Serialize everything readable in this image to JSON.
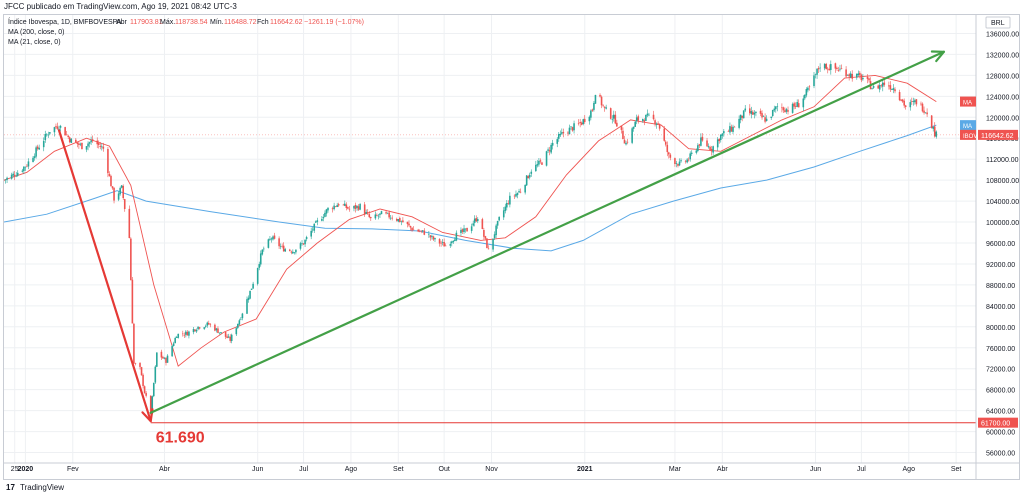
{
  "header": {
    "published_line": "JFCC publicado em TradingView.com, Ago 19, 2021 08:42 UTC-3"
  },
  "legend": {
    "symbol": "Índice Ibovespa, 1D, BMFBOVESPA",
    "open_label": "Abr",
    "open_value": "117903.81",
    "high_label": "Máx.",
    "high_value": "118738.54",
    "low_label": "Mín.",
    "low_value": "116488.72",
    "close_label": "Fch",
    "close_value": "116642.62",
    "change": "−1261.19 (−1.07%)",
    "ma200": "MA (200, close, 0)",
    "ma21": "MA (21, close, 0)"
  },
  "footer": {
    "brand": "TradingView"
  },
  "colors": {
    "up": "#26a69a",
    "down": "#ef5350",
    "ma200": "#5aa9e6",
    "ma21": "#ef5350",
    "trend_down": "#e53935",
    "trend_up": "#43a047"
  },
  "chart_data": {
    "type": "candlestick",
    "currency_label": "BRL",
    "y_ticks": [
      56000,
      60000,
      64000,
      68000,
      72000,
      76000,
      80000,
      84000,
      88000,
      92000,
      96000,
      100000,
      104000,
      108000,
      112000,
      116000,
      120000,
      124000,
      128000,
      132000,
      136000
    ],
    "y_tick_labels": [
      "56000.00",
      "60000.00",
      "64000.00",
      "68000.00",
      "72000.00",
      "76000.00",
      "80000.00",
      "84000.00",
      "88000.00",
      "92000.00",
      "96000.00",
      "100000.00",
      "104000.00",
      "108000.00",
      "112000.00",
      "116000.00",
      "120000.00",
      "124000.00",
      "128000.00",
      "132000.00",
      "136000.00"
    ],
    "ylim": [
      54000,
      138000
    ],
    "x_labels": [
      {
        "label": "25",
        "date": "2019-12-25"
      },
      {
        "label": "2020",
        "date": "2020-01-01"
      },
      {
        "label": "Fev",
        "date": "2020-02-01"
      },
      {
        "label": "Abr",
        "date": "2020-04-01"
      },
      {
        "label": "Jun",
        "date": "2020-06-01"
      },
      {
        "label": "Jul",
        "date": "2020-07-01"
      },
      {
        "label": "Ago",
        "date": "2020-08-01"
      },
      {
        "label": "Set",
        "date": "2020-09-01"
      },
      {
        "label": "Out",
        "date": "2020-10-01"
      },
      {
        "label": "Nov",
        "date": "2020-11-01"
      },
      {
        "label": "2021",
        "date": "2021-01-01"
      },
      {
        "label": "Mar",
        "date": "2021-03-01"
      },
      {
        "label": "Abr",
        "date": "2021-04-01"
      },
      {
        "label": "Jun",
        "date": "2021-06-01"
      },
      {
        "label": "Jul",
        "date": "2021-07-01"
      },
      {
        "label": "Ago",
        "date": "2021-08-01"
      },
      {
        "label": "Set",
        "date": "2021-09-01"
      }
    ],
    "xlim": [
      "2019-12-18",
      "2021-09-14"
    ],
    "close_path": [
      [
        "2019-12-18",
        108000
      ],
      [
        "2019-12-27",
        109500
      ],
      [
        "2020-01-02",
        111000
      ],
      [
        "2020-01-10",
        114500
      ],
      [
        "2020-01-17",
        117500
      ],
      [
        "2020-01-23",
        118500
      ],
      [
        "2020-01-31",
        115500
      ],
      [
        "2020-02-07",
        114500
      ],
      [
        "2020-02-14",
        115500
      ],
      [
        "2020-02-21",
        114000
      ],
      [
        "2020-02-28",
        104500
      ],
      [
        "2020-03-04",
        106500
      ],
      [
        "2020-03-09",
        97000
      ],
      [
        "2020-03-12",
        73000
      ],
      [
        "2020-03-16",
        72000
      ],
      [
        "2020-03-19",
        67500
      ],
      [
        "2020-03-23",
        63500
      ],
      [
        "2020-03-27",
        75000
      ],
      [
        "2020-04-02",
        73500
      ],
      [
        "2020-04-09",
        78500
      ],
      [
        "2020-04-16",
        78800
      ],
      [
        "2020-04-23",
        80000
      ],
      [
        "2020-04-30",
        80500
      ],
      [
        "2020-05-07",
        79000
      ],
      [
        "2020-05-14",
        77500
      ],
      [
        "2020-05-21",
        82000
      ],
      [
        "2020-05-28",
        87500
      ],
      [
        "2020-06-04",
        94500
      ],
      [
        "2020-06-10",
        97000
      ],
      [
        "2020-06-17",
        95000
      ],
      [
        "2020-06-24",
        94500
      ],
      [
        "2020-07-01",
        96000
      ],
      [
        "2020-07-10",
        100000
      ],
      [
        "2020-07-17",
        102500
      ],
      [
        "2020-07-24",
        103500
      ],
      [
        "2020-07-31",
        102500
      ],
      [
        "2020-08-07",
        103000
      ],
      [
        "2020-08-14",
        100500
      ],
      [
        "2020-08-21",
        101500
      ],
      [
        "2020-08-28",
        101000
      ],
      [
        "2020-09-04",
        100000
      ],
      [
        "2020-09-11",
        98500
      ],
      [
        "2020-09-18",
        98000
      ],
      [
        "2020-09-25",
        96500
      ],
      [
        "2020-10-02",
        95500
      ],
      [
        "2020-10-09",
        97500
      ],
      [
        "2020-10-16",
        98500
      ],
      [
        "2020-10-23",
        101000
      ],
      [
        "2020-10-30",
        94500
      ],
      [
        "2020-11-06",
        100500
      ],
      [
        "2020-11-13",
        104500
      ],
      [
        "2020-11-20",
        106000
      ],
      [
        "2020-11-27",
        110000
      ],
      [
        "2020-12-04",
        111500
      ],
      [
        "2020-12-11",
        115000
      ],
      [
        "2020-12-18",
        117000
      ],
      [
        "2020-12-30",
        119000
      ],
      [
        "2021-01-06",
        121500
      ],
      [
        "2021-01-08",
        125000
      ],
      [
        "2021-01-14",
        121500
      ],
      [
        "2021-01-21",
        119500
      ],
      [
        "2021-01-28",
        115000
      ],
      [
        "2021-02-04",
        119500
      ],
      [
        "2021-02-11",
        120000
      ],
      [
        "2021-02-18",
        119000
      ],
      [
        "2021-02-25",
        112500
      ],
      [
        "2021-03-04",
        111000
      ],
      [
        "2021-03-10",
        112000
      ],
      [
        "2021-03-18",
        115500
      ],
      [
        "2021-03-25",
        114000
      ],
      [
        "2021-03-31",
        116500
      ],
      [
        "2021-04-08",
        118000
      ],
      [
        "2021-04-16",
        121000
      ],
      [
        "2021-04-23",
        120500
      ],
      [
        "2021-04-30",
        119500
      ],
      [
        "2021-05-07",
        122000
      ],
      [
        "2021-05-14",
        121500
      ],
      [
        "2021-05-21",
        122500
      ],
      [
        "2021-05-28",
        125500
      ],
      [
        "2021-06-04",
        130000
      ],
      [
        "2021-06-11",
        129500
      ],
      [
        "2021-06-18",
        129000
      ],
      [
        "2021-06-25",
        128000
      ],
      [
        "2021-07-02",
        127500
      ],
      [
        "2021-07-09",
        125500
      ],
      [
        "2021-07-16",
        126500
      ],
      [
        "2021-07-23",
        125500
      ],
      [
        "2021-07-30",
        122000
      ],
      [
        "2021-08-06",
        123000
      ],
      [
        "2021-08-13",
        121000
      ],
      [
        "2021-08-18",
        117000
      ],
      [
        "2021-08-19",
        116642
      ]
    ],
    "ma200_path": [
      [
        "2019-12-18",
        100000
      ],
      [
        "2020-01-15",
        101500
      ],
      [
        "2020-02-15",
        104500
      ],
      [
        "2020-03-01",
        106000
      ],
      [
        "2020-03-20",
        104000
      ],
      [
        "2020-05-01",
        102000
      ],
      [
        "2020-06-15",
        100000
      ],
      [
        "2020-07-15",
        98800
      ],
      [
        "2020-08-15",
        98700
      ],
      [
        "2020-09-15",
        98300
      ],
      [
        "2020-10-15",
        96500
      ],
      [
        "2020-11-15",
        95000
      ],
      [
        "2020-12-10",
        94500
      ],
      [
        "2020-12-31",
        96500
      ],
      [
        "2021-01-31",
        101500
      ],
      [
        "2021-02-28",
        104000
      ],
      [
        "2021-03-31",
        106500
      ],
      [
        "2021-04-30",
        108000
      ],
      [
        "2021-05-31",
        110500
      ],
      [
        "2021-06-30",
        113500
      ],
      [
        "2021-07-31",
        116500
      ],
      [
        "2021-08-19",
        118500
      ]
    ],
    "ma21_path": [
      [
        "2019-12-18",
        108000
      ],
      [
        "2020-01-02",
        109500
      ],
      [
        "2020-01-20",
        113500
      ],
      [
        "2020-02-10",
        116000
      ],
      [
        "2020-02-25",
        114500
      ],
      [
        "2020-03-10",
        107000
      ],
      [
        "2020-03-25",
        88000
      ],
      [
        "2020-04-10",
        72500
      ],
      [
        "2020-04-25",
        76000
      ],
      [
        "2020-05-10",
        79000
      ],
      [
        "2020-05-31",
        81500
      ],
      [
        "2020-06-20",
        91000
      ],
      [
        "2020-07-10",
        96000
      ],
      [
        "2020-07-31",
        100500
      ],
      [
        "2020-08-20",
        102500
      ],
      [
        "2020-09-10",
        101000
      ],
      [
        "2020-09-30",
        98000
      ],
      [
        "2020-10-25",
        96500
      ],
      [
        "2020-11-10",
        97000
      ],
      [
        "2020-11-30",
        101000
      ],
      [
        "2020-12-20",
        109000
      ],
      [
        "2021-01-10",
        115500
      ],
      [
        "2021-01-31",
        119500
      ],
      [
        "2021-02-20",
        118500
      ],
      [
        "2021-03-10",
        114000
      ],
      [
        "2021-03-31",
        113500
      ],
      [
        "2021-04-20",
        116500
      ],
      [
        "2021-05-10",
        119500
      ],
      [
        "2021-05-31",
        122000
      ],
      [
        "2021-06-20",
        127500
      ],
      [
        "2021-07-10",
        128000
      ],
      [
        "2021-07-31",
        126500
      ],
      [
        "2021-08-19",
        123000
      ]
    ],
    "price_tags": [
      {
        "label": "MA",
        "value": 123000,
        "color": "#ef5350"
      },
      {
        "label": "MA",
        "value": 118500,
        "color": "#5aa9e6"
      },
      {
        "label": "IBOV",
        "value": 116642.62,
        "color": "#ef5350",
        "text": "116642.62"
      },
      {
        "label": "",
        "value": 61700,
        "color": "#ef5350",
        "text": "61700.00"
      }
    ],
    "annotations": {
      "support_line": {
        "value": 61690,
        "from": "2020-03-23"
      },
      "support_text": "61.690",
      "down_arrow": {
        "from": [
          "2020-01-23",
          117500
        ],
        "to": [
          "2020-03-23",
          62000
        ]
      },
      "up_arrow": {
        "from": [
          "2020-03-23",
          63600
        ],
        "to": [
          "2021-08-24",
          132500
        ]
      }
    },
    "xlabel": "",
    "ylabel": ""
  }
}
